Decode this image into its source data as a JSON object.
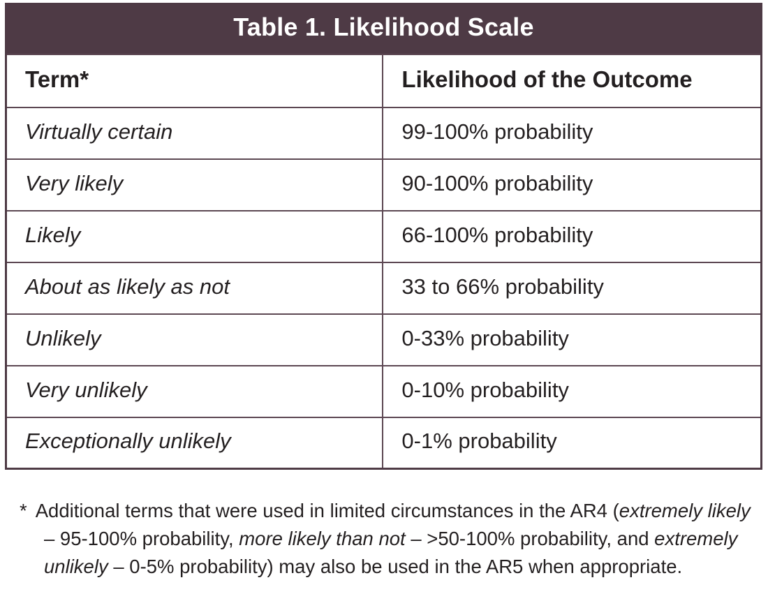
{
  "table": {
    "title": "Table 1. Likelihood Scale",
    "columns": [
      "Term*",
      "Likelihood of the Outcome"
    ],
    "rows": [
      {
        "term": "Virtually certain",
        "likelihood": "99-100% probability"
      },
      {
        "term": "Very likely",
        "likelihood": "90-100% probability"
      },
      {
        "term": "Likely",
        "likelihood": "66-100% probability"
      },
      {
        "term": "About as likely as not",
        "likelihood": "33 to 66% probability"
      },
      {
        "term": "Unlikely",
        "likelihood": "0-33% probability"
      },
      {
        "term": "Very unlikely",
        "likelihood": "0-10% probability"
      },
      {
        "term": "Exceptionally unlikely",
        "likelihood": "0-1% probability"
      }
    ]
  },
  "footnote": {
    "marker": "*",
    "segments": [
      {
        "text": "Additional terms that were used in limited circumstances in the AR4 (",
        "italic": false
      },
      {
        "text": "extremely likely",
        "italic": true
      },
      {
        "text": " – 95-100% probability, ",
        "italic": false
      },
      {
        "text": "more likely than not",
        "italic": true
      },
      {
        "text": " – >50-100% probability, and ",
        "italic": false
      },
      {
        "text": "extremely unlikely",
        "italic": true
      },
      {
        "text": " – 0-5% probability) may also be used in the AR5 when appropriate.",
        "italic": false
      }
    ]
  },
  "colors": {
    "header_bg": "#4e3a45",
    "border_col": "#5c4752",
    "text_col": "#231f20",
    "title_text": "#ffffff"
  }
}
